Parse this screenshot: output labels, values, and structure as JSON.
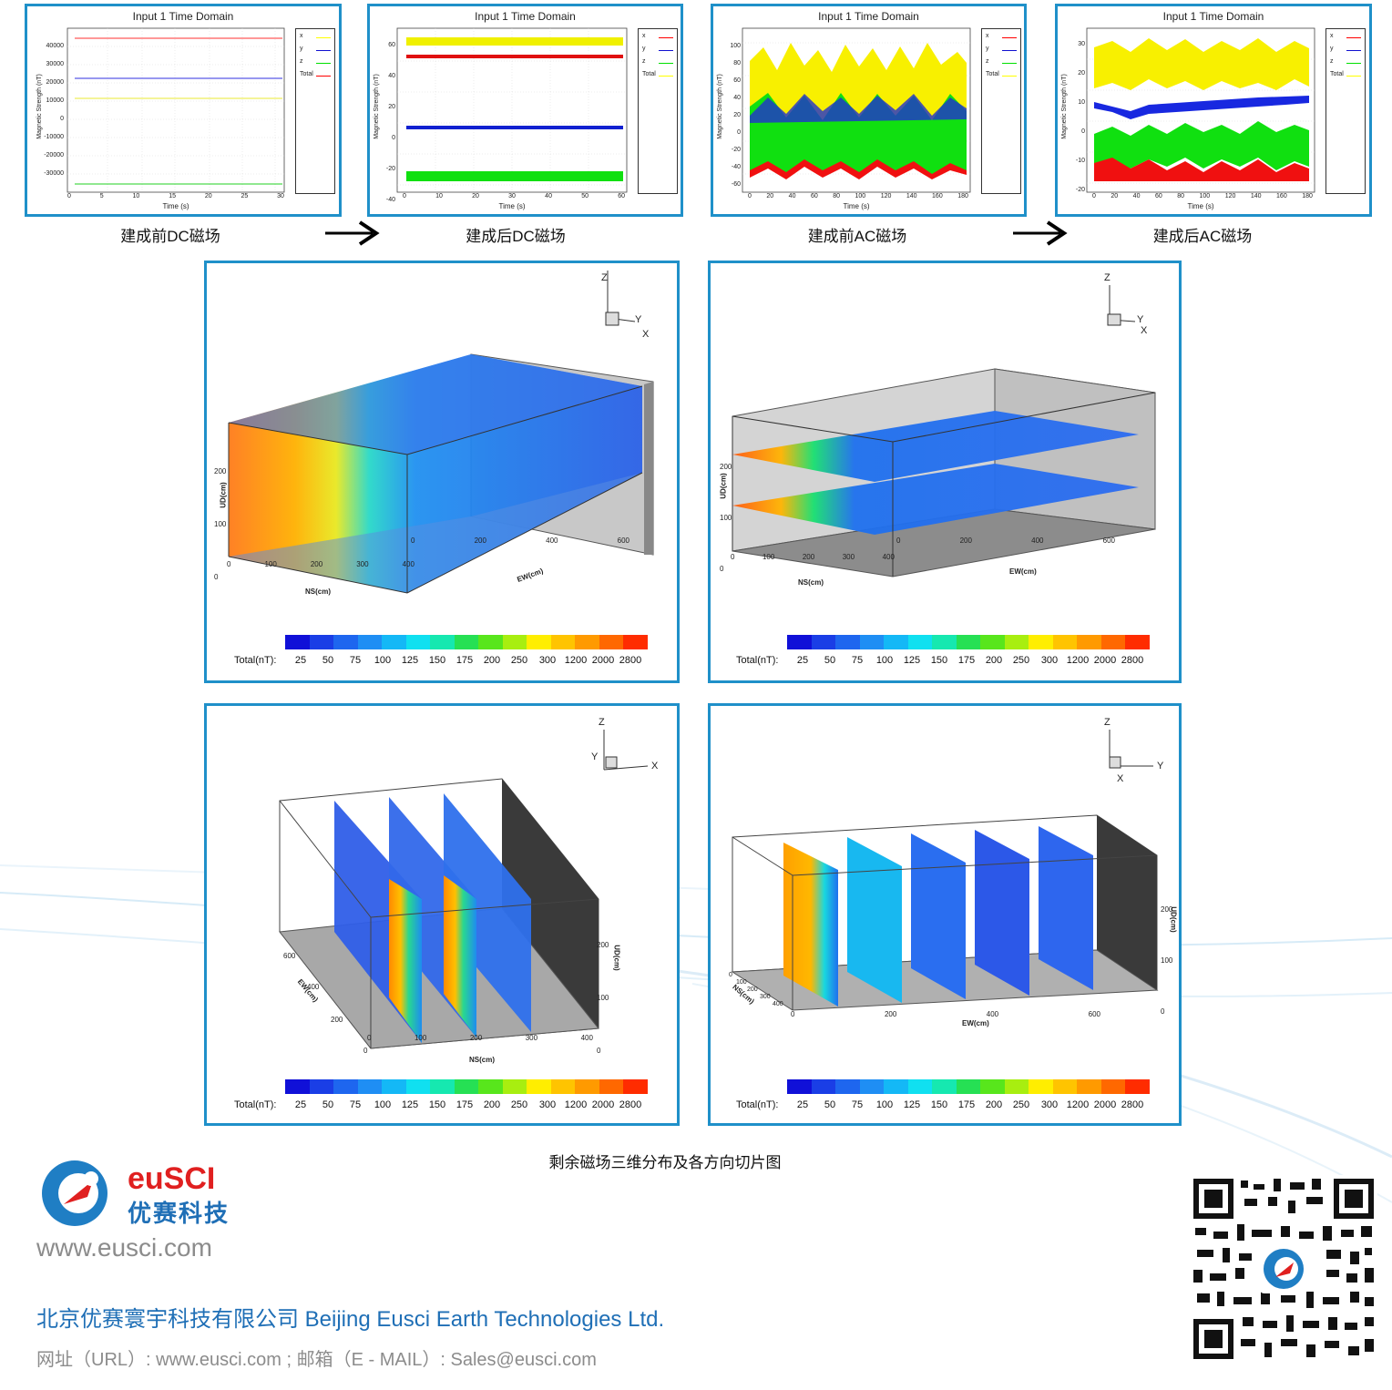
{
  "top_panels": [
    {
      "title": "Input 1 Time Domain",
      "ylabel": "Magnetic Strength (nT)",
      "xlabel": "Time (s)",
      "yticks": [
        "40000",
        "30000",
        "20000",
        "10000",
        "0",
        "-10000",
        "-20000",
        "-30000"
      ],
      "xticks": [
        "0",
        "5",
        "10",
        "15",
        "20",
        "25",
        "30"
      ],
      "legend": [
        "x",
        "y",
        "z",
        "Total"
      ],
      "caption": "建成前DC磁场"
    },
    {
      "title": "Input 1 Time Domain",
      "ylabel": "Magnetic Strength (nT)",
      "xlabel": "Time (s)",
      "yticks": [
        "60",
        "40",
        "20",
        "0",
        "-20",
        "-40"
      ],
      "xticks": [
        "0",
        "10",
        "20",
        "30",
        "40",
        "50",
        "60"
      ],
      "legend": [
        "x",
        "y",
        "z",
        "Total"
      ],
      "caption": "建成后DC磁场"
    },
    {
      "title": "Input 1 Time Domain",
      "ylabel": "Magnetic Strength (nT)",
      "xlabel": "Time (s)",
      "yticks": [
        "100",
        "80",
        "60",
        "40",
        "20",
        "0",
        "-20",
        "-40",
        "-60"
      ],
      "xticks": [
        "0",
        "20",
        "40",
        "60",
        "80",
        "100",
        "120",
        "140",
        "160",
        "180"
      ],
      "legend": [
        "x",
        "y",
        "z",
        "Total"
      ],
      "caption": "建成前AC磁场"
    },
    {
      "title": "Input 1 Time Domain",
      "ylabel": "Magnetic Strength (nT)",
      "xlabel": "Time (s)",
      "yticks": [
        "30",
        "20",
        "10",
        "0",
        "-10",
        "-20"
      ],
      "xticks": [
        "0",
        "20",
        "40",
        "60",
        "80",
        "100",
        "120",
        "140",
        "160",
        "180"
      ],
      "legend": [
        "x",
        "y",
        "z",
        "Total"
      ],
      "caption": "建成后AC磁场"
    }
  ],
  "colors": {
    "frame": "#1f90c9",
    "x": "#ffff00",
    "y": "#1010d0",
    "z": "#00e000",
    "total": "#ff0000",
    "scale": [
      "#1010d8",
      "#1a3ee6",
      "#1e66ef",
      "#1f8ef4",
      "#14b8f6",
      "#10e0f0",
      "#16e8b0",
      "#26e054",
      "#58e61c",
      "#a8ee10",
      "#ffee00",
      "#ffc400",
      "#ff9a00",
      "#ff6800",
      "#ff2c00"
    ]
  },
  "views": [
    {
      "axis_z": "Z",
      "axis_a": "Y",
      "axis_b": "X",
      "ud": "UD(cm)",
      "ns": "NS(cm)",
      "ew": "EW(cm)",
      "ud_ticks": [
        "0",
        "100",
        "200"
      ],
      "ns_ticks": [
        "0",
        "100",
        "200",
        "300",
        "400"
      ],
      "ew_ticks": [
        "0",
        "200",
        "400",
        "600"
      ]
    },
    {
      "axis_z": "Z",
      "axis_a": "Y",
      "axis_b": "X",
      "ud": "UD(cm)",
      "ns": "NS(cm)",
      "ew": "EW(cm)",
      "ud_ticks": [
        "0",
        "100",
        "200"
      ],
      "ns_ticks": [
        "0",
        "100",
        "200",
        "300",
        "400"
      ],
      "ew_ticks": [
        "0",
        "200",
        "400",
        "600"
      ]
    },
    {
      "axis_z": "Z",
      "axis_a": "Y",
      "axis_b": "X",
      "ud": "UD(cm)",
      "ns": "NS(cm)",
      "ew": "EW(cm)",
      "ud_ticks": [
        "0",
        "100",
        "200"
      ],
      "ns_ticks": [
        "0",
        "100",
        "200",
        "300",
        "400"
      ],
      "ew_ticks": [
        "0",
        "200",
        "400",
        "600"
      ]
    },
    {
      "axis_z": "Z",
      "axis_a": "Y",
      "axis_b": "X",
      "ud": "UD(cm)",
      "ns": "NS(cm)",
      "ew": "EW(cm)",
      "ud_ticks": [
        "0",
        "100",
        "200"
      ],
      "ns_ticks": [
        "0",
        "100",
        "200",
        "300",
        "400"
      ],
      "ew_ticks": [
        "0",
        "200",
        "400",
        "600"
      ]
    }
  ],
  "colorbar": {
    "label": "Total(nT):",
    "ticks": [
      "25",
      "50",
      "75",
      "100",
      "125",
      "150",
      "175",
      "200",
      "250",
      "300",
      "1200",
      "2000",
      "2800"
    ]
  },
  "figure_caption": "剩余磁场三维分布及各方向切片图",
  "brand": {
    "logo_en": "euSCI",
    "logo_cn": "优赛科技",
    "website": "www.eusci.com"
  },
  "footer": {
    "company": "北京优赛寰宇科技有限公司  Beijing Eusci Earth Technologies Ltd.",
    "contact": "网址（URL）:  www.eusci.com ; 邮箱（E - MAIL）:    Sales@eusci.com"
  }
}
